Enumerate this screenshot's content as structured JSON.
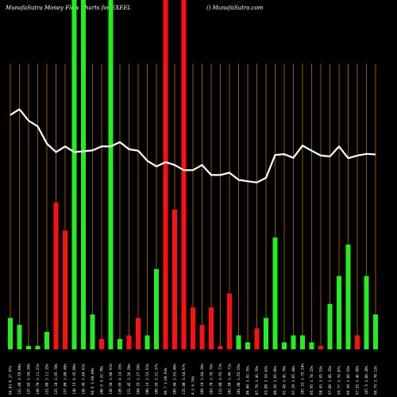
{
  "header": {
    "title": "MunafaSutra  Money Flow  Charts for EXEEL",
    "site": "() MunafaSutra.com"
  },
  "colors": {
    "background": "#000000",
    "up": "#22ee22",
    "down": "#ff1010",
    "grid": "#b8700c",
    "line": "#ffffff",
    "text": "#ffffff"
  },
  "chart_data": {
    "type": "bar",
    "title": "MunafaSutra  Money Flow  Charts for EXEEL",
    "ylim": [
      0,
      100
    ],
    "categories": [
      "96.83 0.17.97%",
      "121.00 3.59.00%",
      "127.65 3.94.39%",
      "120.70 3.11.21%",
      "121.00 3.11.35%",
      "121.10 3.65.78%",
      "127.00 3.88.40%",
      "130.15 4.35.80%",
      "120.45 3.84.91%",
      "96.6 3.68.60%",
      "106.5 4.22.70%",
      "136.50 3.98.91%",
      "120.65 4.14.19%",
      "111.45 3.56.50%",
      "104.25 3.27.50%",
      "100.15 3.52.91%",
      "109.55 3.51.37%",
      "96.7 3.68.93%",
      "105.90 3.93.40%",
      "115.80 3.64.97%",
      "4.3 6.74%",
      "109.10 3.84.10%",
      "103.70 3.76.76%",
      "112.08 3.65.71%",
      "101.50 3.46.71%",
      "101.80 3.65.55%",
      "80.00 3.93.76%",
      "87.70 3.46.76%",
      "83.88 3.54.62%",
      "80.26 3.65.66%",
      "91.49 3.45.79%",
      "97.29 3.65.44%",
      "101.53 3.75.34%",
      "95.95 3.78.15%",
      "98.43 3.65.53%",
      "97.00 3.88.15%",
      "95.77 3.76.07%",
      "96.49 3.60.52%",
      "97.55 3.46.99%",
      "107.5 3.80.28%",
      "96.75 3.70.12%"
    ],
    "values": [
      9,
      7,
      1,
      1,
      5,
      42,
      34,
      100,
      100,
      10,
      3,
      100,
      3,
      4,
      9,
      4,
      23,
      100,
      40,
      100,
      12,
      7,
      12,
      1,
      16,
      4,
      2,
      6,
      9,
      32,
      2,
      4,
      4,
      2,
      1,
      13,
      21,
      30,
      4,
      21,
      10
    ],
    "direction": [
      "up",
      "up",
      "up",
      "up",
      "up",
      "down",
      "down",
      "up",
      "up",
      "up",
      "down",
      "up",
      "up",
      "down",
      "down",
      "up",
      "up",
      "down",
      "down",
      "down",
      "down",
      "down",
      "down",
      "down",
      "down",
      "up",
      "up",
      "down",
      "up",
      "up",
      "up",
      "up",
      "up",
      "up",
      "down",
      "up",
      "up",
      "up",
      "down",
      "up",
      "up"
    ],
    "price_line": {
      "ylim": [
        0,
        100
      ],
      "values": [
        82,
        84,
        80,
        78,
        72,
        69,
        71,
        69,
        69.3,
        69.6,
        71,
        71,
        72.5,
        70,
        69.5,
        66,
        64,
        65.5,
        64.5,
        62.7,
        62.7,
        64.5,
        61,
        61,
        61.8,
        59.3,
        58.8,
        58.4,
        60,
        68,
        68.3,
        67,
        71.3,
        69.5,
        67.8,
        67.5,
        71,
        66.9,
        67.8,
        68.4,
        68.2
      ]
    }
  }
}
